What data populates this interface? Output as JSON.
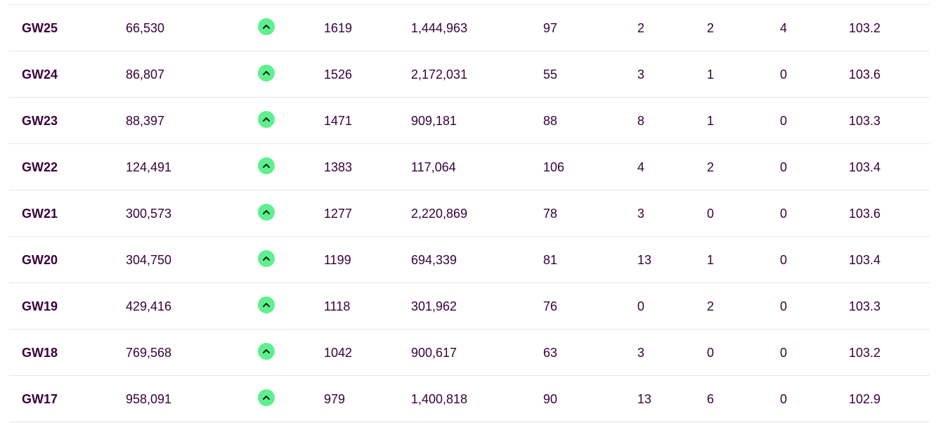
{
  "rows": [
    {
      "gameweek": "GW25",
      "rank": "66,530",
      "movement": "up",
      "points": "1619",
      "overall": "1,444,963",
      "gw_points": "97",
      "transfers": "2",
      "bench": "2",
      "cost": "4",
      "value": "103.2"
    },
    {
      "gameweek": "GW24",
      "rank": "86,807",
      "movement": "up",
      "points": "1526",
      "overall": "2,172,031",
      "gw_points": "55",
      "transfers": "3",
      "bench": "1",
      "cost": "0",
      "value": "103.6"
    },
    {
      "gameweek": "GW23",
      "rank": "88,397",
      "movement": "up",
      "points": "1471",
      "overall": "909,181",
      "gw_points": "88",
      "transfers": "8",
      "bench": "1",
      "cost": "0",
      "value": "103.3"
    },
    {
      "gameweek": "GW22",
      "rank": "124,491",
      "movement": "up",
      "points": "1383",
      "overall": "117,064",
      "gw_points": "106",
      "transfers": "4",
      "bench": "2",
      "cost": "0",
      "value": "103.4"
    },
    {
      "gameweek": "GW21",
      "rank": "300,573",
      "movement": "up",
      "points": "1277",
      "overall": "2,220,869",
      "gw_points": "78",
      "transfers": "3",
      "bench": "0",
      "cost": "0",
      "value": "103.6"
    },
    {
      "gameweek": "GW20",
      "rank": "304,750",
      "movement": "up",
      "points": "1199",
      "overall": "694,339",
      "gw_points": "81",
      "transfers": "13",
      "bench": "1",
      "cost": "0",
      "value": "103.4"
    },
    {
      "gameweek": "GW19",
      "rank": "429,416",
      "movement": "up",
      "points": "1118",
      "overall": "301,962",
      "gw_points": "76",
      "transfers": "0",
      "bench": "2",
      "cost": "0",
      "value": "103.3"
    },
    {
      "gameweek": "GW18",
      "rank": "769,568",
      "movement": "up",
      "points": "1042",
      "overall": "900,617",
      "gw_points": "63",
      "transfers": "3",
      "bench": "0",
      "cost": "0",
      "value": "103.2"
    },
    {
      "gameweek": "GW17",
      "rank": "958,091",
      "movement": "up",
      "points": "979",
      "overall": "1,400,818",
      "gw_points": "90",
      "transfers": "13",
      "bench": "6",
      "cost": "0",
      "value": "102.9"
    }
  ],
  "icons": {
    "movement_up": "chevron-up-icon"
  },
  "colors": {
    "text": "#37003c",
    "movement_up": "#5ef08f",
    "divider": "#e6e6ea"
  }
}
